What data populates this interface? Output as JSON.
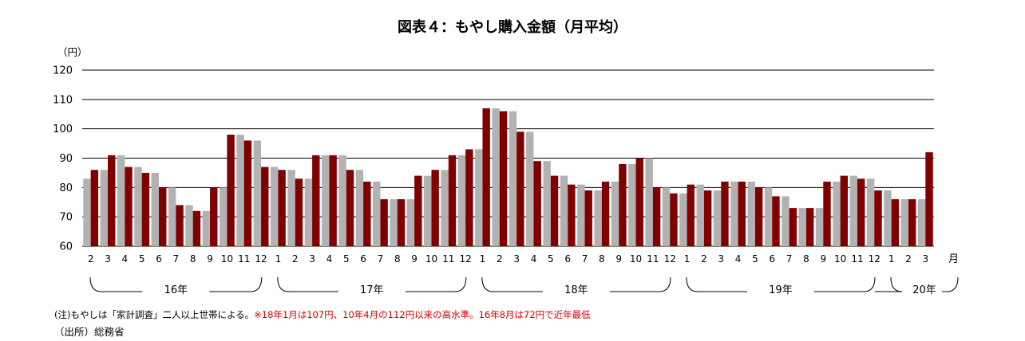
{
  "title": "図表４：もやし購入金額（月平均）",
  "chart_data": {
    "type": "bar",
    "ylabel": "（円）",
    "xlabel": "月",
    "ylim": [
      60,
      120
    ],
    "yticks": [
      60,
      70,
      80,
      90,
      100,
      110,
      120
    ],
    "grid": true,
    "legend": "none",
    "colors": {
      "current": "#800000",
      "previous": "#b2b2b2",
      "grid": "#000000"
    },
    "categories": [
      "2",
      "3",
      "4",
      "5",
      "6",
      "7",
      "8",
      "9",
      "10",
      "11",
      "12",
      "1",
      "2",
      "3",
      "4",
      "5",
      "6",
      "7",
      "8",
      "9",
      "10",
      "11",
      "12",
      "1",
      "2",
      "3",
      "4",
      "5",
      "6",
      "7",
      "8",
      "9",
      "10",
      "11",
      "12",
      "1",
      "2",
      "3",
      "4",
      "5",
      "6",
      "7",
      "8",
      "9",
      "10",
      "11",
      "12",
      "1",
      "2",
      "3"
    ],
    "year_groups": [
      {
        "label": "16年",
        "count": 11
      },
      {
        "label": "17年",
        "count": 12
      },
      {
        "label": "18年",
        "count": 12
      },
      {
        "label": "19年",
        "count": 12
      },
      {
        "label": "20年",
        "count": 3
      }
    ],
    "series": [
      {
        "values": [
          83,
          86,
          91,
          87,
          85,
          80,
          74,
          72,
          80,
          98,
          96,
          87,
          86,
          83,
          91,
          91,
          86,
          82,
          76,
          76,
          84,
          86,
          91,
          93,
          107,
          106,
          99,
          89,
          84,
          81,
          79,
          82,
          88,
          90,
          80,
          78,
          81,
          79,
          82,
          82,
          80,
          77,
          73,
          73,
          82,
          84,
          83,
          79,
          76,
          76
        ]
      },
      {
        "values": [
          86,
          91,
          87,
          85,
          80,
          74,
          72,
          80,
          98,
          96,
          87,
          86,
          83,
          91,
          91,
          86,
          82,
          76,
          76,
          84,
          86,
          91,
          93,
          107,
          106,
          99,
          89,
          84,
          81,
          79,
          82,
          88,
          90,
          80,
          78,
          81,
          79,
          82,
          82,
          80,
          77,
          73,
          73,
          82,
          84,
          83,
          79,
          76,
          76,
          92
        ]
      }
    ]
  },
  "note": {
    "prefix": "(注)もやしは「家計調査」二人以上世帯による。",
    "highlight": "※18年1月は107円、10年4月の112円以来の高水準。16年8月は72円で近年最低"
  },
  "source": "（出所）総務省"
}
